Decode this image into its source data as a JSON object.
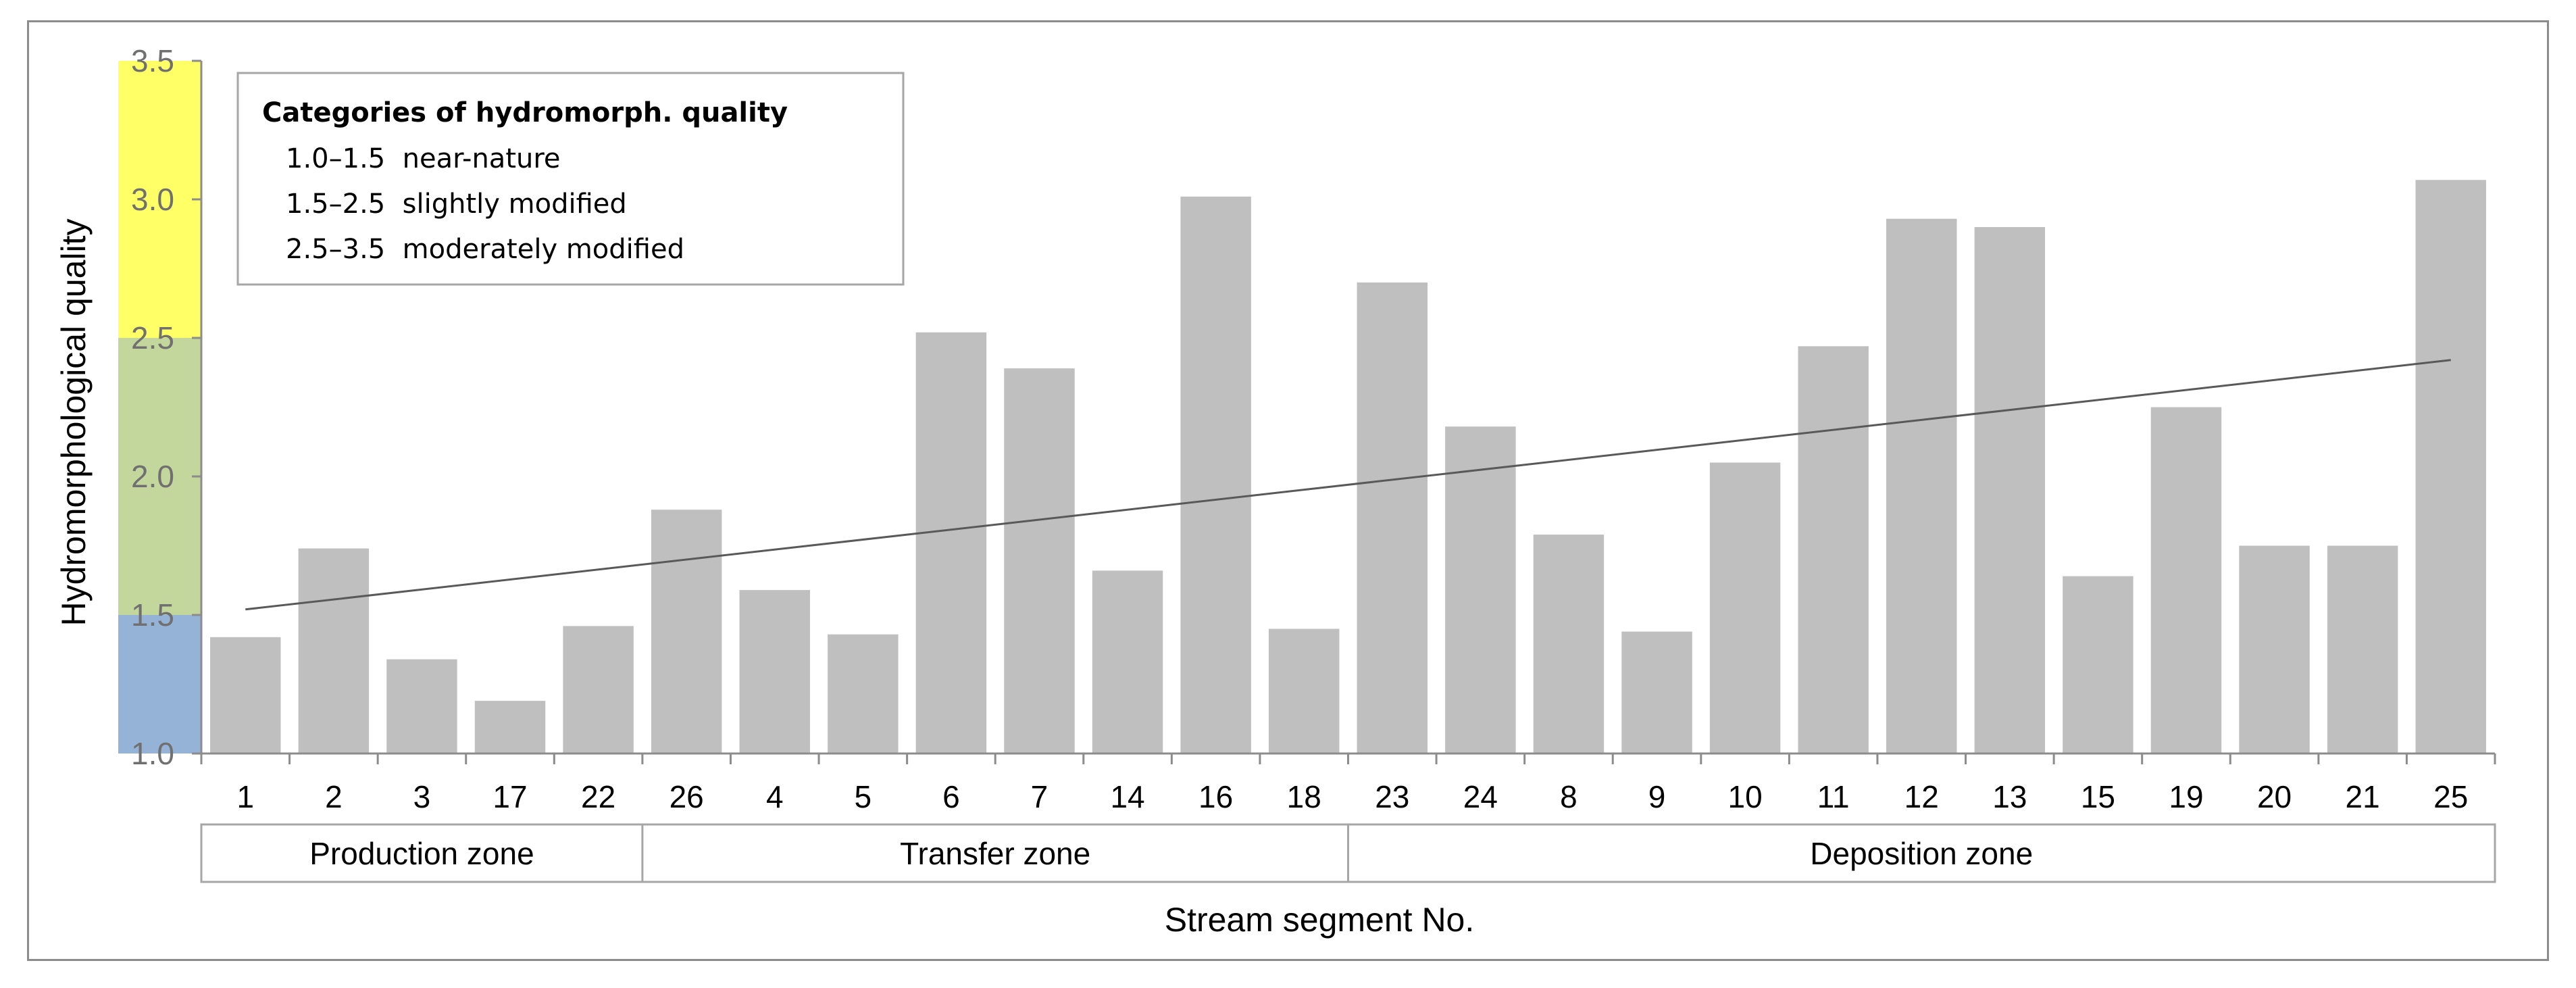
{
  "chart_data": {
    "type": "bar",
    "ylabel": "Hydromorphological quality",
    "xlabel": "Stream segment No.",
    "ylim": [
      1.0,
      3.5
    ],
    "yticks": [
      "1.0",
      "1.5",
      "2.0",
      "2.5",
      "3.0",
      "3.5"
    ],
    "categories": [
      "1",
      "2",
      "3",
      "17",
      "22",
      "26",
      "4",
      "5",
      "6",
      "7",
      "14",
      "16",
      "18",
      "23",
      "24",
      "8",
      "9",
      "10",
      "11",
      "12",
      "13",
      "15",
      "19",
      "20",
      "21",
      "25"
    ],
    "values": [
      1.42,
      1.74,
      1.34,
      1.19,
      1.46,
      1.88,
      1.59,
      1.43,
      2.52,
      2.39,
      1.66,
      3.01,
      1.45,
      2.7,
      2.18,
      1.79,
      1.44,
      2.05,
      2.47,
      2.93,
      2.9,
      1.64,
      2.25,
      1.75,
      1.75,
      3.07
    ],
    "trendline": {
      "type": "linear",
      "start": 1.52,
      "end": 2.42
    },
    "zones": [
      {
        "label": "Production zone",
        "from": 0,
        "to": 4
      },
      {
        "label": "Transfer zone",
        "from": 5,
        "to": 12
      },
      {
        "label": "Deposition zone",
        "from": 13,
        "to": 25
      }
    ],
    "quality_bands": [
      {
        "from": 1.0,
        "to": 1.5,
        "color": "#95b3d7"
      },
      {
        "from": 1.5,
        "to": 2.5,
        "color": "#c3d69b"
      },
      {
        "from": 2.5,
        "to": 3.5,
        "color": "#ffff66"
      }
    ],
    "legend": {
      "title": "Categories of hydromorph. quality",
      "items": [
        "1.0–1.5  near-nature",
        "1.5–2.5  slightly modified",
        "2.5–3.5  moderately modified"
      ],
      "position": "top-left"
    },
    "bar_color": "#bfbfbf",
    "trend_color": "#595959",
    "grid": false
  }
}
